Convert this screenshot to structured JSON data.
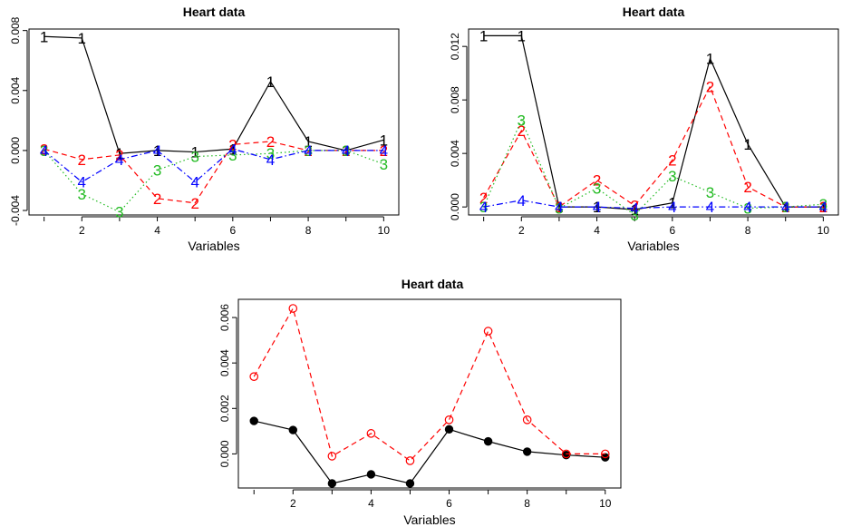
{
  "chart_data": [
    {
      "type": "line",
      "title": "Heart data",
      "xlabel": "Variables",
      "ylabel": "",
      "x": [
        1,
        2,
        3,
        4,
        5,
        6,
        7,
        8,
        9,
        10
      ],
      "xticks": [
        2,
        4,
        6,
        8,
        10
      ],
      "yticks": [
        -0.004,
        0,
        0.004,
        0.008
      ],
      "ytick_labels": [
        "-0.004",
        "0.000",
        "0.004",
        "0.008"
      ],
      "xlim": [
        0.6,
        10.4
      ],
      "ylim": [
        -0.0043,
        0.0081
      ],
      "grid": false,
      "legend": "none",
      "series": [
        {
          "label": "1",
          "color": "#000000",
          "dash": "solid",
          "values": [
            0.0076,
            0.0075,
            -0.0002,
            0.0,
            -0.0001,
            0.0001,
            0.0046,
            0.0006,
            0.0,
            0.0007
          ]
        },
        {
          "label": "2",
          "color": "#ff0000",
          "dash": "dashed",
          "values": [
            0.0001,
            -0.0006,
            -0.0003,
            -0.0032,
            -0.0035,
            0.0004,
            0.0006,
            0.0,
            0.0,
            0.0
          ]
        },
        {
          "label": "3",
          "color": "#22bb22",
          "dash": "dotted",
          "values": [
            0.0,
            -0.0029,
            -0.0041,
            -0.0013,
            -0.0004,
            -0.0003,
            -0.0002,
            0.0,
            0.0,
            -0.0009
          ]
        },
        {
          "label": "4",
          "color": "#0000ff",
          "dash": "dotdash",
          "values": [
            0.0,
            -0.0021,
            -0.0006,
            0.0,
            -0.0021,
            0.0001,
            -0.0006,
            0.0,
            0.0,
            0.0
          ]
        }
      ]
    },
    {
      "type": "line",
      "title": "Heart data",
      "xlabel": "Variables",
      "ylabel": "",
      "x": [
        1,
        2,
        3,
        4,
        5,
        6,
        7,
        8,
        9,
        10
      ],
      "xticks": [
        2,
        4,
        6,
        8,
        10
      ],
      "yticks": [
        0,
        0.004,
        0.008,
        0.012
      ],
      "ytick_labels": [
        "0.000",
        "0.004",
        "0.008",
        "0.012"
      ],
      "xlim": [
        0.6,
        10.4
      ],
      "ylim": [
        -0.0006,
        0.0133
      ],
      "grid": false,
      "legend": "none",
      "series": [
        {
          "label": "1",
          "color": "#000000",
          "dash": "solid",
          "values": [
            0.0128,
            0.0128,
            0.0,
            0.0,
            -0.0002,
            0.0003,
            0.0111,
            0.0047,
            0.0,
            0.0
          ]
        },
        {
          "label": "2",
          "color": "#ff0000",
          "dash": "dashed",
          "values": [
            0.0007,
            0.0057,
            0.0,
            0.002,
            0.0001,
            0.0035,
            0.009,
            0.0015,
            0.0,
            0.0
          ]
        },
        {
          "label": "3",
          "color": "#22bb22",
          "dash": "dotted",
          "values": [
            0.0,
            0.0065,
            -0.0001,
            0.0014,
            -0.0006,
            0.0023,
            0.0011,
            -0.0001,
            0.0,
            0.0002
          ]
        },
        {
          "label": "4",
          "color": "#0000ff",
          "dash": "dotdash",
          "values": [
            0.0,
            0.0005,
            0.0,
            0.0,
            -0.0001,
            0.0,
            0.0,
            0.0,
            0.0,
            0.0
          ]
        }
      ]
    },
    {
      "type": "line",
      "title": "Heart data",
      "xlabel": "Variables",
      "ylabel": "",
      "x": [
        1,
        2,
        3,
        4,
        5,
        6,
        7,
        8,
        9,
        10
      ],
      "xticks": [
        2,
        4,
        6,
        8,
        10
      ],
      "yticks": [
        0,
        0.002,
        0.004,
        0.006
      ],
      "ytick_labels": [
        "0.000",
        "0.002",
        "0.004",
        "0.006"
      ],
      "xlim": [
        0.6,
        10.4
      ],
      "ylim": [
        -0.0015,
        0.0068
      ],
      "grid": false,
      "legend": "none",
      "series": [
        {
          "label": "",
          "color": "#000000",
          "dash": "solid",
          "marker": "filled-circle",
          "values": [
            0.00145,
            0.00105,
            -0.0013,
            -0.0009,
            -0.0013,
            0.00108,
            0.00055,
            0.0001,
            -5e-05,
            -0.00015
          ]
        },
        {
          "label": "",
          "color": "#ff0000",
          "dash": "dashed",
          "marker": "open-circle",
          "values": [
            0.0034,
            0.0064,
            -0.0001,
            0.0009,
            -0.0003,
            0.0015,
            0.0054,
            0.0015,
            0.0,
            0.0
          ]
        }
      ]
    }
  ]
}
